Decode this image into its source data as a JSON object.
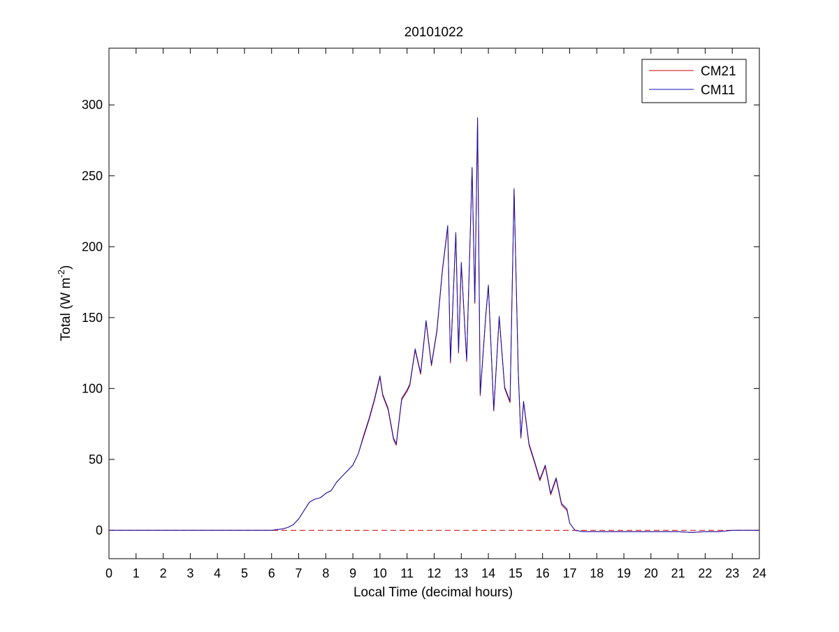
{
  "chart_data": {
    "type": "line",
    "title": "20101022",
    "xlabel": "Local Time (decimal hours)",
    "ylabel": {
      "prefix": "Total (W m",
      "superscript": "-2",
      "suffix": ")"
    },
    "xlim": [
      0,
      24
    ],
    "ylim": [
      -20,
      340
    ],
    "xticks": [
      0,
      1,
      2,
      3,
      4,
      5,
      6,
      7,
      8,
      9,
      10,
      11,
      12,
      13,
      14,
      15,
      16,
      17,
      18,
      19,
      20,
      21,
      22,
      23,
      24
    ],
    "yticks": [
      0,
      50,
      100,
      150,
      200,
      250,
      300
    ],
    "grid": false,
    "legend_position": "top-right",
    "reference_line": {
      "y": 0,
      "color": "#cc0000",
      "style": "dashed"
    },
    "series": [
      {
        "name": "CM21",
        "color": "#cc0000",
        "x": [
          0,
          6,
          6.4,
          6.6,
          6.8,
          7,
          7.2,
          7.4,
          7.6,
          7.8,
          8,
          8.2,
          8.4,
          8.6,
          8.8,
          9,
          9.2,
          9.4,
          9.6,
          9.8,
          10,
          10.1,
          10.3,
          10.5,
          10.6,
          10.8,
          11,
          11.1,
          11.3,
          11.5,
          11.7,
          11.9,
          12.1,
          12.3,
          12.5,
          12.6,
          12.8,
          12.9,
          13.0,
          13.2,
          13.4,
          13.5,
          13.6,
          13.7,
          13.9,
          14.0,
          14.2,
          14.4,
          14.6,
          14.8,
          14.95,
          15.1,
          15.2,
          15.3,
          15.5,
          15.7,
          15.9,
          16.1,
          16.3,
          16.5,
          16.7,
          16.9,
          17.0,
          17.2,
          17.5,
          18,
          19,
          20,
          21,
          21.5,
          22,
          22.5,
          23,
          23.5,
          24
        ],
        "y": [
          0,
          0,
          1,
          2,
          4,
          8,
          14,
          20,
          22,
          23,
          26,
          28,
          34,
          38,
          42,
          46,
          54,
          66,
          78,
          92,
          108,
          95,
          85,
          64,
          60,
          92,
          98,
          102,
          127,
          110,
          147,
          116,
          140,
          182,
          214,
          118,
          209,
          125,
          188,
          119,
          255,
          160,
          290,
          95,
          150,
          172,
          84,
          150,
          100,
          90,
          240,
          112,
          65,
          90,
          60,
          48,
          35,
          45,
          25,
          36,
          18,
          14,
          5,
          0,
          -1,
          -1,
          -1,
          -1,
          -1,
          -1.5,
          -1,
          -1,
          0,
          0,
          0
        ]
      },
      {
        "name": "CM11",
        "color": "#1010b0",
        "x": [
          0,
          6,
          6.4,
          6.6,
          6.8,
          7,
          7.2,
          7.4,
          7.6,
          7.8,
          8,
          8.2,
          8.4,
          8.6,
          8.8,
          9,
          9.2,
          9.4,
          9.6,
          9.8,
          10,
          10.1,
          10.3,
          10.5,
          10.6,
          10.8,
          11,
          11.1,
          11.3,
          11.5,
          11.7,
          11.9,
          12.1,
          12.3,
          12.5,
          12.6,
          12.8,
          12.9,
          13.0,
          13.2,
          13.4,
          13.5,
          13.6,
          13.7,
          13.9,
          14.0,
          14.2,
          14.4,
          14.6,
          14.8,
          14.95,
          15.1,
          15.2,
          15.3,
          15.5,
          15.7,
          15.9,
          16.1,
          16.3,
          16.5,
          16.7,
          16.9,
          17.0,
          17.2,
          17.5,
          18,
          19,
          20,
          21,
          21.5,
          22,
          22.5,
          23,
          23.5,
          24
        ],
        "y": [
          0,
          0,
          1,
          2,
          4,
          8,
          14,
          20,
          22,
          23,
          26,
          28,
          34,
          38,
          42,
          46,
          54,
          67,
          79,
          93,
          109,
          96,
          86,
          65,
          61,
          93,
          99,
          103,
          128,
          111,
          148,
          117,
          141,
          183,
          215,
          119,
          210,
          126,
          189,
          120,
          256,
          161,
          291,
          96,
          151,
          173,
          85,
          151,
          101,
          91,
          241,
          113,
          66,
          91,
          61,
          49,
          36,
          46,
          26,
          37,
          19,
          15,
          5,
          0,
          -1,
          -1,
          -1,
          -1,
          -1,
          -1.5,
          -1,
          -1,
          0,
          0,
          0
        ]
      }
    ]
  }
}
